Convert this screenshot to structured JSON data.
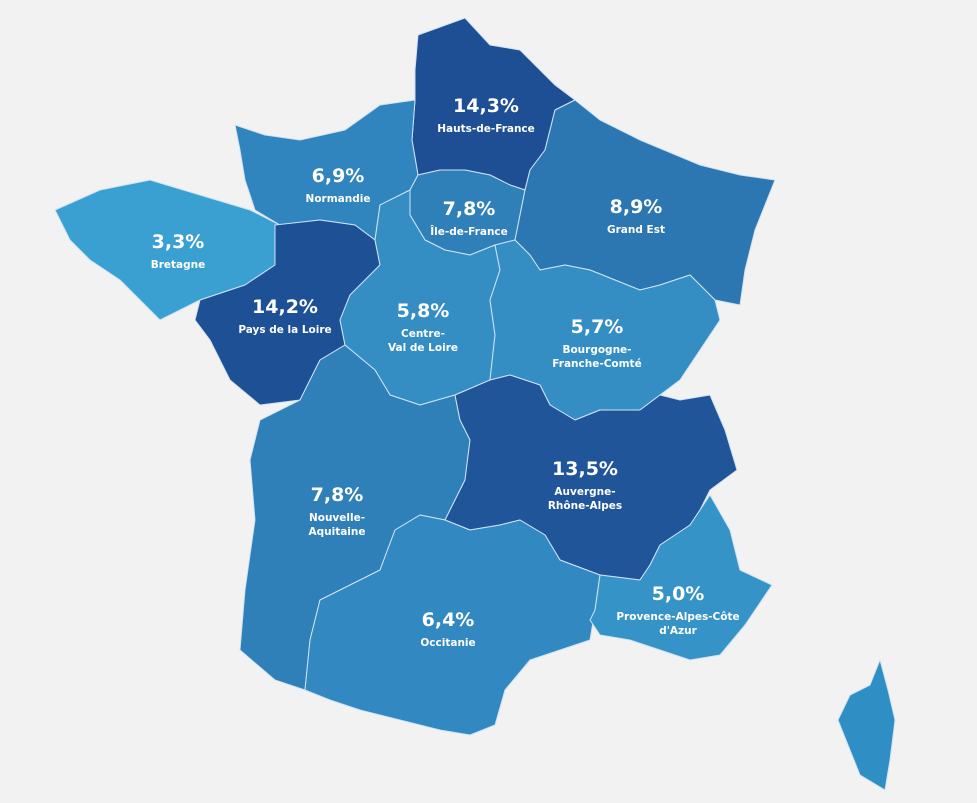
{
  "regions": [
    {
      "name": [
        "Hauts-de-France"
      ],
      "value": 14.3,
      "value_label": "14,3%"
    },
    {
      "name": [
        "Normandie"
      ],
      "value": 6.9,
      "value_label": "6,9%"
    },
    {
      "name": [
        "Bretagne"
      ],
      "value": 3.3,
      "value_label": "3,3%"
    },
    {
      "name": [
        "Pays de la Loire"
      ],
      "value": 14.2,
      "value_label": "14,2%"
    },
    {
      "name": [
        "Île-de-France"
      ],
      "value": 7.8,
      "value_label": "7,8%"
    },
    {
      "name": [
        "Grand Est"
      ],
      "value": 8.9,
      "value_label": "8,9%"
    },
    {
      "name": [
        "Centre-",
        "Val de Loire"
      ],
      "value": 5.8,
      "value_label": "5,8%"
    },
    {
      "name": [
        "Bourgogne-",
        "Franche-Comté"
      ],
      "value": 5.7,
      "value_label": "5,7%"
    },
    {
      "name": [
        "Nouvelle-",
        "Aquitaine"
      ],
      "value": 7.8,
      "value_label": "7,8%"
    },
    {
      "name": [
        "Auvergne-",
        "Rhône-Alpes"
      ],
      "value": 13.5,
      "value_label": "13,5%"
    },
    {
      "name": [
        "Occitanie"
      ],
      "value": 6.4,
      "value_label": "6,4%"
    },
    {
      "name": [
        "Provence-Alpes-Côte",
        "d'Azur"
      ],
      "value": 5.0,
      "value_label": "5,0%"
    }
  ]
}
